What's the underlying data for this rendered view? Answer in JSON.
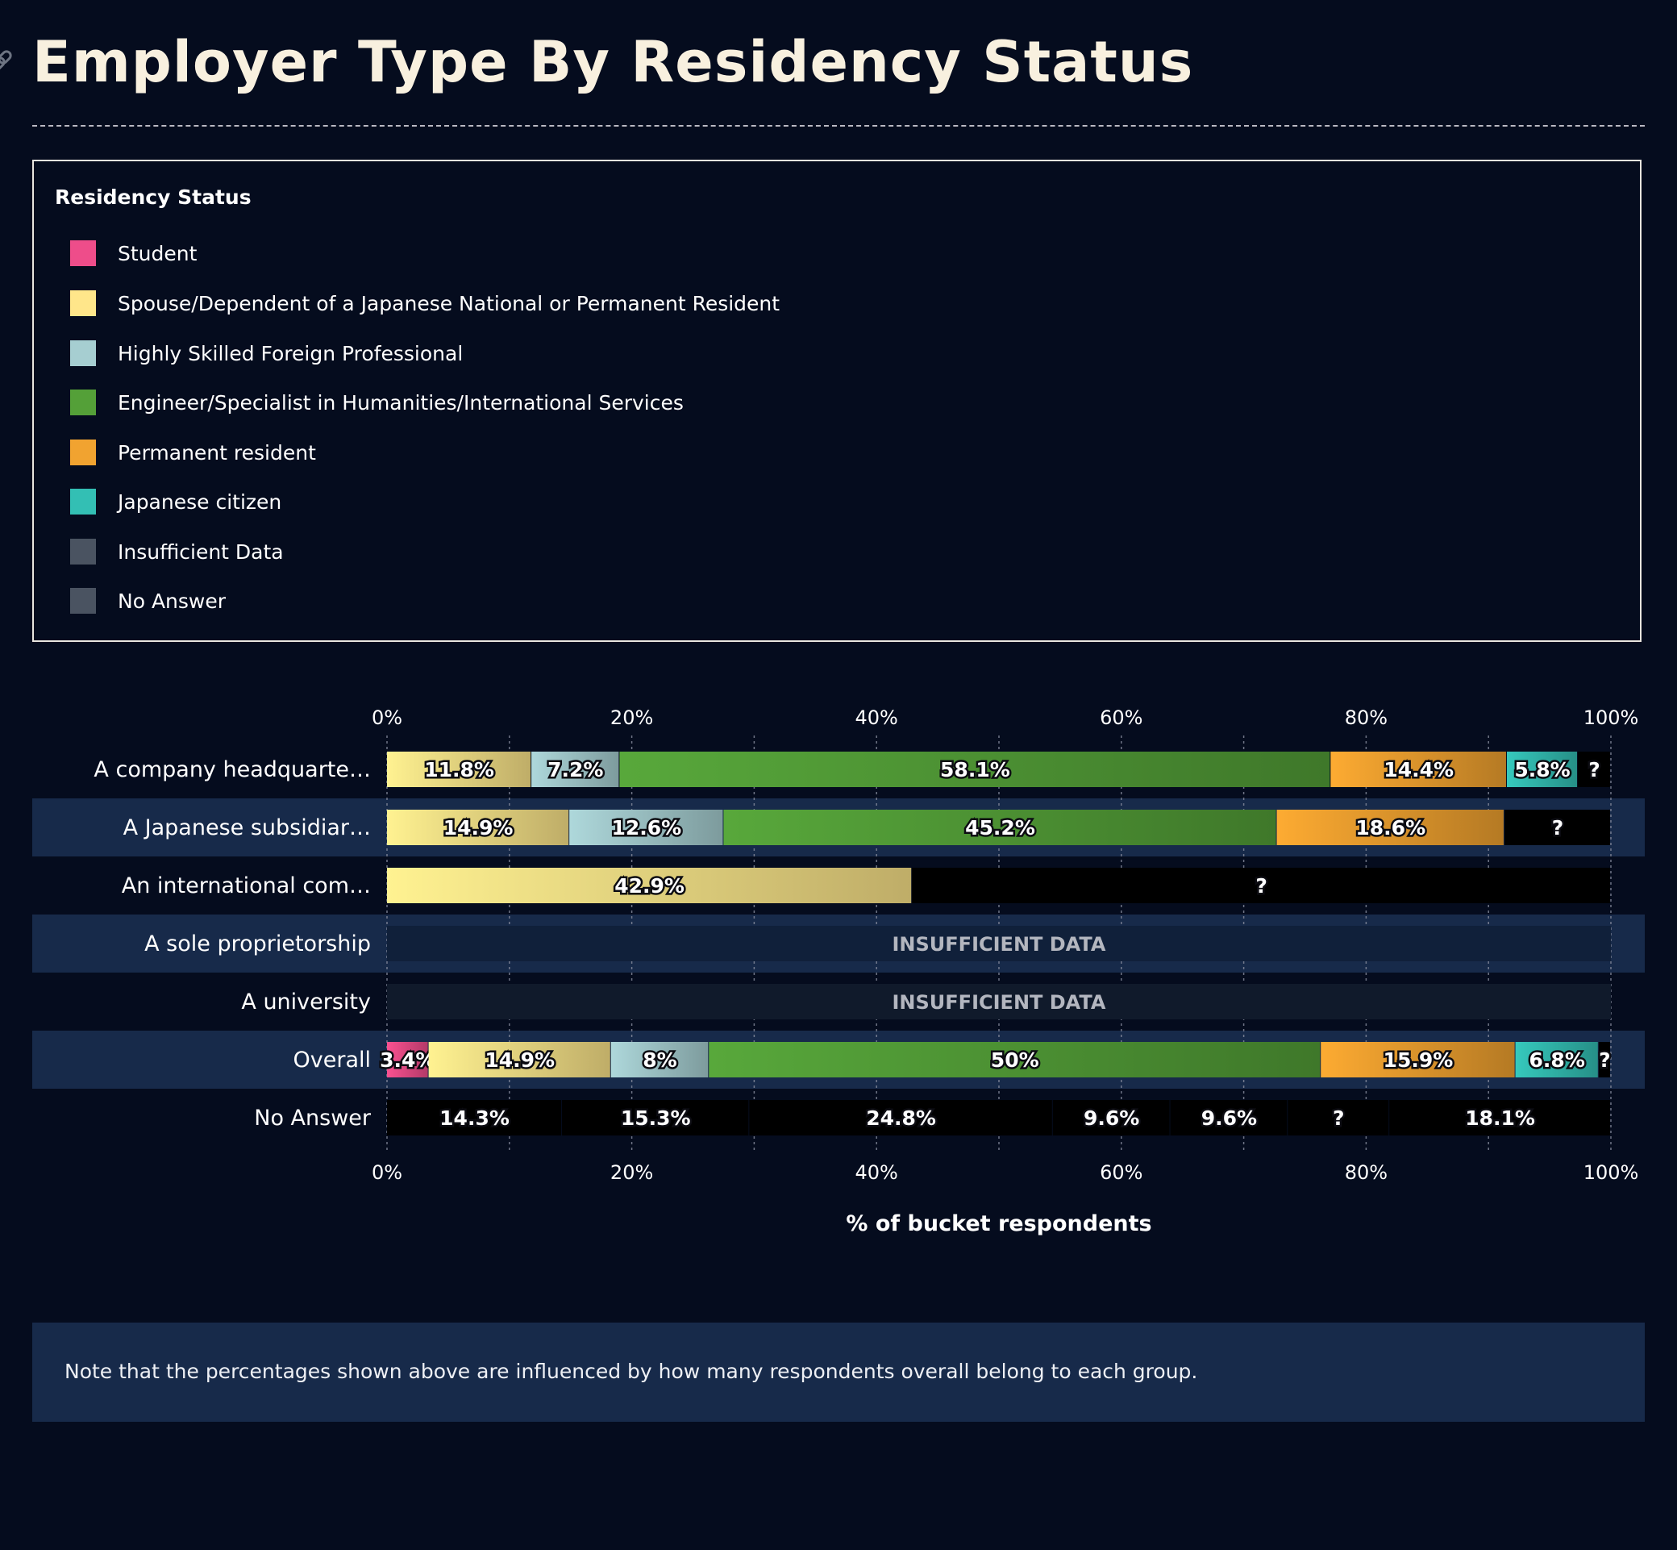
{
  "title": "Employer Type By Residency Status",
  "legend": {
    "title": "Residency Status",
    "items": [
      {
        "label": "Student",
        "color": "#ee4d8a"
      },
      {
        "label": "Spouse/Dependent of a Japanese National or Permanent Resident",
        "color": "#ffe68a"
      },
      {
        "label": "Highly Skilled Foreign Professional",
        "color": "#a6ced1"
      },
      {
        "label": "Engineer/Specialist in Humanities/International Services",
        "color": "#54a038"
      },
      {
        "label": "Permanent resident",
        "color": "#f1a330"
      },
      {
        "label": "Japanese citizen",
        "color": "#33bfb4"
      },
      {
        "label": "Insufficient Data",
        "color": "#4a5361"
      },
      {
        "label": "No Answer",
        "color": "#4a5361"
      }
    ]
  },
  "note": "Note that the percentages shown above are influenced by how many respondents overall belong to each group.",
  "chart_data": {
    "type": "bar",
    "orientation": "horizontal",
    "stacked": true,
    "xlabel": "% of bucket respondents",
    "xlim": [
      0,
      100
    ],
    "xticks": [
      "0%",
      "20%",
      "40%",
      "60%",
      "80%",
      "100%"
    ],
    "grid": true,
    "insufficient_label": "INSUFFICIENT DATA",
    "categories": [
      "A company headquarte…",
      "A Japanese subsidiar…",
      "An international com…",
      "A sole proprietorship",
      "A university",
      "Overall",
      "No Answer"
    ],
    "rows": [
      {
        "highlight": false,
        "segments": [
          {
            "series": "Spouse/Dependent of a Japanese National or Permanent Resident",
            "value": 11.8,
            "label": "11.8%"
          },
          {
            "series": "Highly Skilled Foreign Professional",
            "value": 7.2,
            "label": "7.2%"
          },
          {
            "series": "Engineer/Specialist in Humanities/International Services",
            "value": 58.1,
            "label": "58.1%"
          },
          {
            "series": "Permanent resident",
            "value": 14.4,
            "label": "14.4%"
          },
          {
            "series": "Japanese citizen",
            "value": 5.8,
            "label": "5.8%"
          },
          {
            "series": "Insufficient Data",
            "value": 2.7,
            "label": "?"
          }
        ]
      },
      {
        "highlight": true,
        "segments": [
          {
            "series": "Spouse/Dependent of a Japanese National or Permanent Resident",
            "value": 14.9,
            "label": "14.9%"
          },
          {
            "series": "Highly Skilled Foreign Professional",
            "value": 12.6,
            "label": "12.6%"
          },
          {
            "series": "Engineer/Specialist in Humanities/International Services",
            "value": 45.2,
            "label": "45.2%"
          },
          {
            "series": "Permanent resident",
            "value": 18.6,
            "label": "18.6%"
          },
          {
            "series": "Insufficient Data",
            "value": 8.7,
            "label": "?"
          }
        ]
      },
      {
        "highlight": false,
        "segments": [
          {
            "series": "Spouse/Dependent of a Japanese National or Permanent Resident",
            "value": 42.9,
            "label": "42.9%"
          },
          {
            "series": "Insufficient Data",
            "value": 57.1,
            "label": "?"
          }
        ]
      },
      {
        "highlight": true,
        "insufficient": true,
        "segments": []
      },
      {
        "highlight": false,
        "insufficient": true,
        "segments": []
      },
      {
        "highlight": true,
        "segments": [
          {
            "series": "Student",
            "value": 3.4,
            "label": "3.4%"
          },
          {
            "series": "Spouse/Dependent of a Japanese National or Permanent Resident",
            "value": 14.9,
            "label": "14.9%"
          },
          {
            "series": "Highly Skilled Foreign Professional",
            "value": 8,
            "label": "8%"
          },
          {
            "series": "Engineer/Specialist in Humanities/International Services",
            "value": 50,
            "label": "50%"
          },
          {
            "series": "Permanent resident",
            "value": 15.9,
            "label": "15.9%"
          },
          {
            "series": "Japanese citizen",
            "value": 6.8,
            "label": "6.8%"
          },
          {
            "series": "Insufficient Data",
            "value": 1,
            "label": "?"
          }
        ]
      },
      {
        "highlight": false,
        "segments": [
          {
            "series": "No Answer",
            "value": 14.3,
            "label": "14.3%"
          },
          {
            "series": "No Answer",
            "value": 15.3,
            "label": "15.3%"
          },
          {
            "series": "No Answer",
            "value": 24.8,
            "label": "24.8%"
          },
          {
            "series": "No Answer",
            "value": 9.6,
            "label": "9.6%"
          },
          {
            "series": "No Answer",
            "value": 9.6,
            "label": "9.6%"
          },
          {
            "series": "No Answer",
            "value": 8.3,
            "label": "?"
          },
          {
            "series": "No Answer",
            "value": 18.1,
            "label": "18.1%"
          }
        ]
      }
    ]
  }
}
